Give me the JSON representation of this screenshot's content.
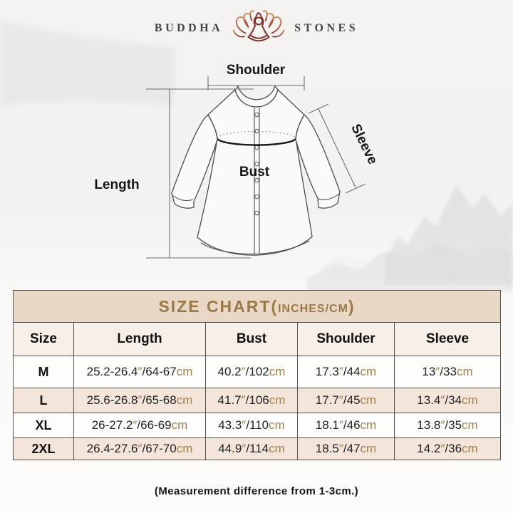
{
  "brand": {
    "left": "BUDDHA",
    "right": "STONES",
    "icon": "lotus-meditation-icon"
  },
  "diagram": {
    "labels": {
      "shoulder": "Shoulder",
      "length": "Length",
      "bust": "Bust",
      "sleeve": "Sleeve"
    }
  },
  "size_chart": {
    "title": "SIZE CHART",
    "title_open": "(",
    "unit_label": "INCHES/CM",
    "title_close": ")",
    "headers": [
      "Size",
      "Length",
      "Bust",
      "Shoulder",
      "Sleeve"
    ],
    "inch_mark": "″",
    "cm_mark": "cm",
    "separator": "/",
    "rows": [
      {
        "size": "M",
        "length": {
          "in": "25.2-26.4",
          "cm": "64-67"
        },
        "bust": {
          "in": "40.2",
          "cm": "102"
        },
        "shoulder": {
          "in": "17.3",
          "cm": "44"
        },
        "sleeve": {
          "in": "13",
          "cm": "33"
        }
      },
      {
        "size": "L",
        "length": {
          "in": "25.6-26.8",
          "cm": "65-68"
        },
        "bust": {
          "in": "41.7",
          "cm": "106"
        },
        "shoulder": {
          "in": "17.7",
          "cm": "45"
        },
        "sleeve": {
          "in": "13.4",
          "cm": "34"
        }
      },
      {
        "size": "XL",
        "length": {
          "in": "26-27.2",
          "cm": "66-69"
        },
        "bust": {
          "in": "43.3",
          "cm": "110"
        },
        "shoulder": {
          "in": "18.1",
          "cm": "46"
        },
        "sleeve": {
          "in": "13.8",
          "cm": "35"
        }
      },
      {
        "size": "2XL",
        "length": {
          "in": "26.4-27.6",
          "cm": "67-70"
        },
        "bust": {
          "in": "44.9",
          "cm": "114"
        },
        "shoulder": {
          "in": "18.5",
          "cm": "47"
        },
        "sleeve": {
          "in": "14.2",
          "cm": "36"
        }
      }
    ]
  },
  "footer": {
    "note": "(Measurement difference from 1-3cm.)"
  },
  "colors": {
    "accent_gold": "#9a7947",
    "title_band_bg": "#e9d8c6",
    "row_alt_bg": "#f3e5da",
    "table_border": "#57524c",
    "logo_red": "#8c3226",
    "unit_text": "#a3824f"
  }
}
